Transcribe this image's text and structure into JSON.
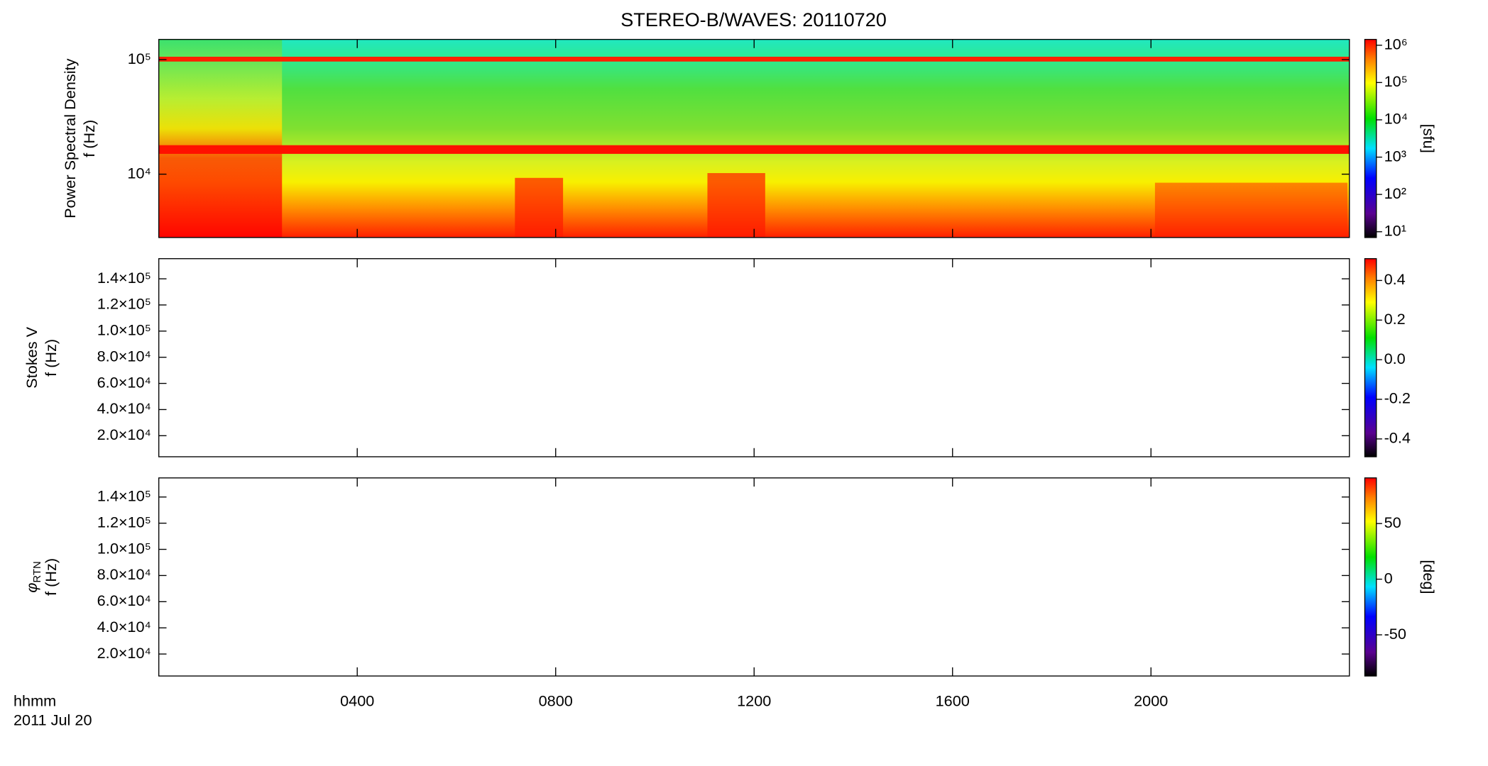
{
  "chart_data": [
    {
      "type": "spectrogram",
      "title": "STEREO-B/WAVES: 20110720",
      "ylabel": [
        "Power Spectral Density",
        "f (Hz)"
      ],
      "log_y": true,
      "ylim": [
        2800,
        150000
      ],
      "yticks": [
        {
          "value": 10000,
          "label": "10⁴"
        },
        {
          "value": 100000,
          "label": "10⁵"
        }
      ],
      "xlim": [
        0,
        24
      ],
      "xticks": [
        4,
        8,
        12,
        16,
        20
      ],
      "colorbar": {
        "log": true,
        "clim": [
          7,
          1430000
        ],
        "label": "[sfu]",
        "ticks": [
          {
            "value": 10,
            "label": "10¹"
          },
          {
            "value": 100,
            "label": "10²"
          },
          {
            "value": 1000,
            "label": "10³"
          },
          {
            "value": 10000,
            "label": "10⁴"
          },
          {
            "value": 100000,
            "label": "10⁵"
          },
          {
            "value": 1000000,
            "label": "10⁶"
          }
        ]
      }
    },
    {
      "type": "spectrogram",
      "ylabel": [
        "Stokes V",
        "f (Hz)"
      ],
      "log_y": false,
      "ylim": [
        3900,
        155400
      ],
      "yticks": [
        {
          "value": 20000,
          "label": "2.0×10⁴"
        },
        {
          "value": 40000,
          "label": "4.0×10⁴"
        },
        {
          "value": 60000,
          "label": "6.0×10⁴"
        },
        {
          "value": 80000,
          "label": "8.0×10⁴"
        },
        {
          "value": 100000,
          "label": "1.0×10⁵"
        },
        {
          "value": 120000,
          "label": "1.2×10⁵"
        },
        {
          "value": 140000,
          "label": "1.4×10⁵"
        }
      ],
      "xlim": [
        0,
        24
      ],
      "xticks": [
        4,
        8,
        12,
        16,
        20
      ],
      "colorbar": {
        "log": false,
        "clim": [
          -0.49,
          0.51
        ],
        "ticks": [
          -0.4,
          -0.2,
          {
            "value": 0,
            "label": "0.0"
          },
          0.2,
          0.4
        ]
      }
    },
    {
      "type": "spectrogram",
      "ylabel": [
        "f (Hz)"
      ],
      "ylabel_symbol": "φ",
      "ylabel_subscript": "RTN",
      "log_y": false,
      "ylim": [
        3200,
        154600
      ],
      "yticks": [
        {
          "value": 20000,
          "label": "2.0×10⁴"
        },
        {
          "value": 40000,
          "label": "4.0×10⁴"
        },
        {
          "value": 60000,
          "label": "6.0×10⁴"
        },
        {
          "value": 80000,
          "label": "8.0×10⁴"
        },
        {
          "value": 100000,
          "label": "1.0×10⁵"
        },
        {
          "value": 120000,
          "label": "1.2×10⁵"
        },
        {
          "value": 140000,
          "label": "1.4×10⁵"
        }
      ],
      "xlim": [
        0,
        24
      ],
      "xticks": [
        {
          "value": 4,
          "label": "0400"
        },
        {
          "value": 8,
          "label": "0800"
        },
        {
          "value": 12,
          "label": "1200"
        },
        {
          "value": 16,
          "label": "1600"
        },
        {
          "value": 20,
          "label": "2000"
        }
      ],
      "xlabel": [
        "hhmm",
        "2011 Jul 20"
      ],
      "colorbar": {
        "log": false,
        "clim": [
          -87,
          91
        ],
        "label": "[deg]",
        "ticks": [
          -50,
          0,
          50
        ]
      }
    }
  ]
}
